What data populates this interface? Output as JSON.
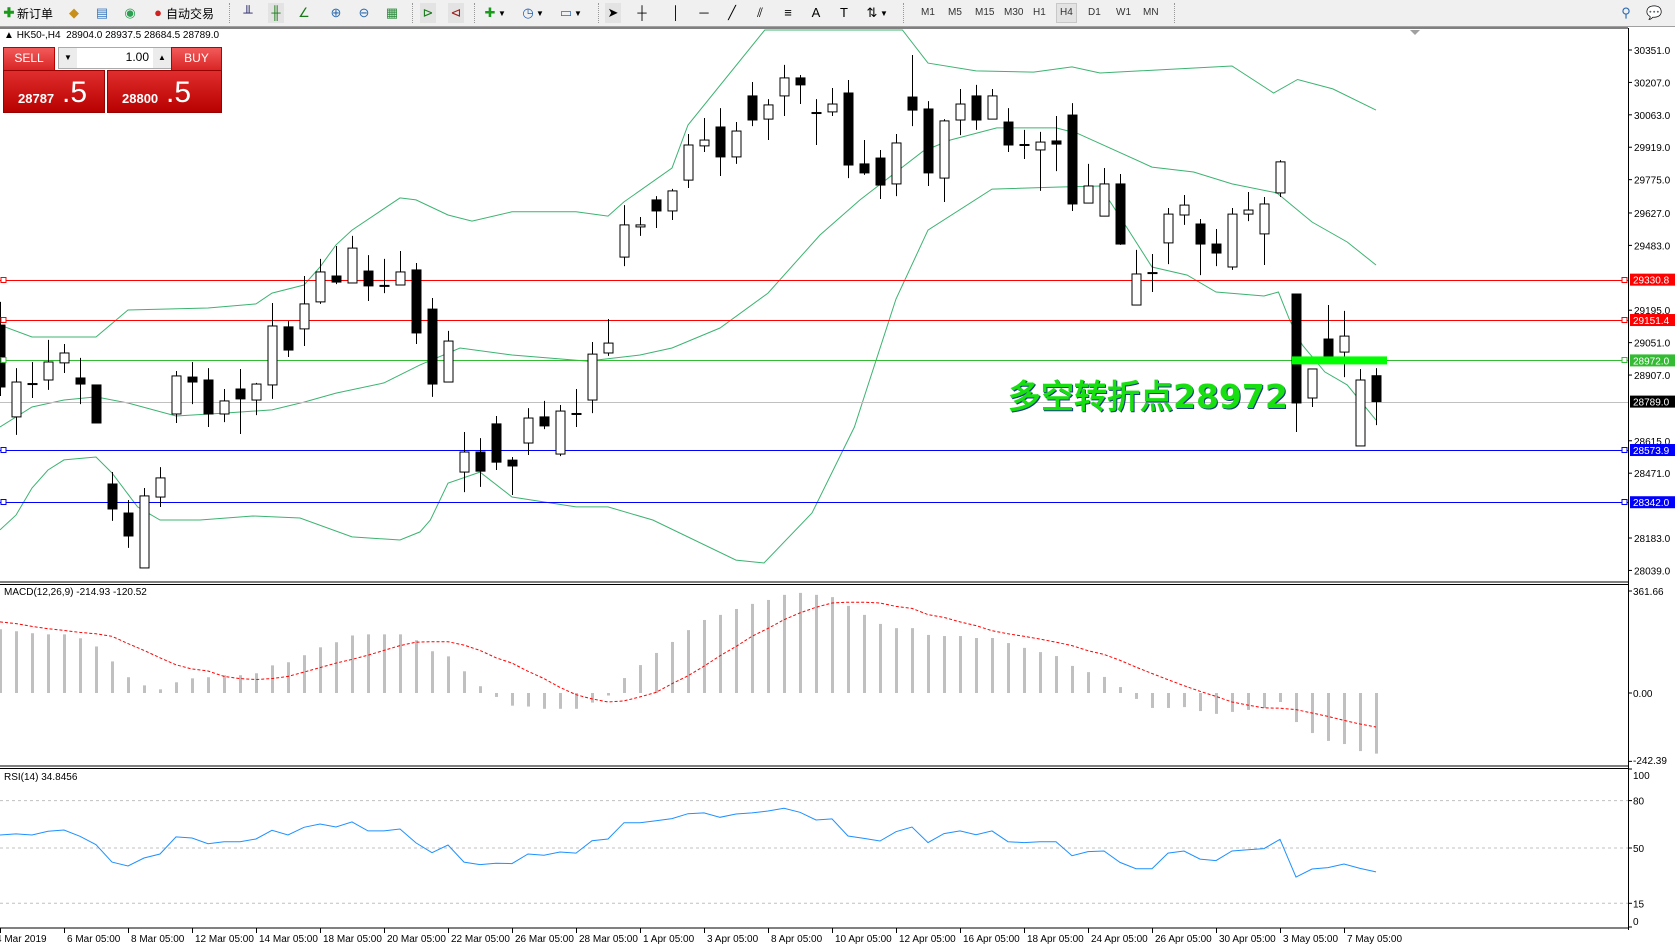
{
  "toolbar": {
    "new_order_label": "新订单",
    "auto_trading_label": "自动交易",
    "icons": [
      "new-order-icon",
      "market-watch-icon",
      "navigator-icon",
      "signals-icon",
      "auto-trading-icon",
      "bar-chart-icon",
      "candlestick-chart-icon",
      "line-chart-icon",
      "zoom-in-icon",
      "zoom-out-icon",
      "tile-windows-icon",
      "chart-shift-icon",
      "autoscroll-icon",
      "indicators-icon",
      "periods-icon",
      "templates-icon",
      "cursor-icon",
      "crosshair-icon",
      "vertical-line-icon",
      "horizontal-line-icon",
      "trendline-icon",
      "equidistant-channel-icon",
      "fibonacci-icon",
      "text-icon",
      "text-label-icon",
      "arrows-icon",
      "search-icon",
      "chat-icon"
    ],
    "timeframes": [
      "M1",
      "M5",
      "M15",
      "M30",
      "H1",
      "H4",
      "D1",
      "W1",
      "MN"
    ],
    "active_timeframe": "H4"
  },
  "header": {
    "symbol": "HK50-,H4",
    "ohlc": "28904.0 28937.5 28684.5 28789.0"
  },
  "trade_panel": {
    "sell_label": "SELL",
    "buy_label": "BUY",
    "lot": "1.00",
    "sell_price_main": "28787",
    "sell_price_frac": ".5",
    "buy_price_main": "28800",
    "buy_price_frac": ".5"
  },
  "annotation": "多空转折点28972",
  "colors": {
    "bands": "#3cb371",
    "macd_hist": "#c0c0c0",
    "macd_signal": "#ff0000",
    "rsi": "#1e90ff",
    "annotation": "#18e010",
    "resistance": "#ff0000",
    "pivot": "#33bb33",
    "support": "#0000ff",
    "bid": "#c0c0c0"
  },
  "price_axis": {
    "ticks": [
      "30351.0",
      "30207.0",
      "30063.0",
      "29919.0",
      "29775.0",
      "29627.0",
      "29483.0",
      "29195.0",
      "29051.0",
      "28907.0",
      "28615.0",
      "28471.0",
      "28183.0",
      "28039.0"
    ]
  },
  "levels": [
    {
      "value": "29330.8",
      "color": "#ff0000",
      "type": "resistance"
    },
    {
      "value": "29151.4",
      "color": "#ff0000",
      "type": "resistance"
    },
    {
      "value": "28972.0",
      "color": "#33bb33",
      "type": "pivot"
    },
    {
      "value": "28789.0",
      "color": "#000000",
      "type": "bid"
    },
    {
      "value": "28573.9",
      "color": "#0000ff",
      "type": "support"
    },
    {
      "value": "28342.0",
      "color": "#0000ff",
      "type": "support"
    }
  ],
  "time_axis": {
    "labels": [
      "4 Mar 2019",
      "6 Mar 05:00",
      "8 Mar 05:00",
      "12 Mar 05:00",
      "14 Mar 05:00",
      "18 Mar 05:00",
      "20 Mar 05:00",
      "22 Mar 05:00",
      "26 Mar 05:00",
      "28 Mar 05:00",
      "1 Apr 05:00",
      "3 Apr 05:00",
      "8 Apr 05:00",
      "10 Apr 05:00",
      "12 Apr 05:00",
      "16 Apr 05:00",
      "18 Apr 05:00",
      "24 Apr 05:00",
      "26 Apr 05:00",
      "30 Apr 05:00",
      "3 May 05:00",
      "7 May 05:00"
    ],
    "label_every_n_bars": 4
  },
  "macd_panel": {
    "label": "MACD(12,26,9) -214.93 -120.52",
    "axis": [
      "361.66",
      "0.00",
      "-242.39"
    ]
  },
  "rsi_panel": {
    "label": "RSI(14) 34.8456",
    "axis": [
      "100",
      "80",
      "50",
      "15",
      "0"
    ],
    "levels": [
      80,
      50,
      15
    ]
  },
  "chart_data": {
    "type": "candlestick",
    "ylim": [
      28000,
      30450
    ],
    "candles_ohlc": [
      [
        29129,
        29232,
        28814,
        28854
      ],
      [
        28721,
        28938,
        28641,
        28876
      ],
      [
        28867,
        28965,
        28805,
        28867
      ],
      [
        28885,
        29063,
        28841,
        28965
      ],
      [
        28961,
        29045,
        28916,
        29005
      ],
      [
        28894,
        28983,
        28778,
        28867
      ],
      [
        28863,
        28863,
        28694,
        28694
      ],
      [
        28423,
        28476,
        28259,
        28312
      ],
      [
        28294,
        28352,
        28139,
        28192
      ],
      [
        28050,
        28405,
        28050,
        28370
      ],
      [
        28365,
        28498,
        28321,
        28450
      ],
      [
        28734,
        28925,
        28694,
        28903
      ],
      [
        28898,
        28965,
        28778,
        28876
      ],
      [
        28885,
        28938,
        28676,
        28734
      ],
      [
        28734,
        28845,
        28698,
        28792
      ],
      [
        28845,
        28934,
        28645,
        28801
      ],
      [
        28796,
        28872,
        28729,
        28867
      ],
      [
        28863,
        29227,
        28801,
        29125
      ],
      [
        29121,
        29147,
        28987,
        29018
      ],
      [
        29112,
        29347,
        29036,
        29223
      ],
      [
        29232,
        29423,
        29223,
        29365
      ],
      [
        29347,
        29480,
        29311,
        29320
      ],
      [
        29316,
        29525,
        29316,
        29471
      ],
      [
        29369,
        29440,
        29236,
        29303
      ],
      [
        29303,
        29423,
        29271,
        29303
      ],
      [
        29307,
        29458,
        29307,
        29365
      ],
      [
        29374,
        29405,
        29045,
        29094
      ],
      [
        29200,
        29249,
        28810,
        28867
      ],
      [
        28876,
        29103,
        28876,
        29058
      ],
      [
        28476,
        28654,
        28387,
        28565
      ],
      [
        28565,
        28627,
        28410,
        28480
      ],
      [
        28690,
        28725,
        28485,
        28520
      ],
      [
        28529,
        28543,
        28374,
        28503
      ],
      [
        28605,
        28760,
        28552,
        28716
      ],
      [
        28721,
        28792,
        28667,
        28681
      ],
      [
        28556,
        28774,
        28547,
        28747
      ],
      [
        28734,
        28845,
        28676,
        28734
      ],
      [
        28796,
        29054,
        28738,
        29000
      ],
      [
        29005,
        29156,
        28992,
        29049
      ],
      [
        29431,
        29662,
        29391,
        29574
      ],
      [
        29565,
        29609,
        29525,
        29574
      ],
      [
        29685,
        29702,
        29560,
        29636
      ],
      [
        29636,
        29734,
        29596,
        29725
      ],
      [
        29773,
        29978,
        29738,
        29929
      ],
      [
        29925,
        30049,
        29898,
        29951
      ],
      [
        30009,
        30093,
        29791,
        29876
      ],
      [
        29876,
        30031,
        29845,
        29991
      ],
      [
        30147,
        30209,
        30013,
        30040
      ],
      [
        30044,
        30133,
        29951,
        30107
      ],
      [
        30147,
        30285,
        30058,
        30227
      ],
      [
        30227,
        30240,
        30111,
        30196
      ],
      [
        30071,
        30133,
        29929,
        30071
      ],
      [
        30076,
        30182,
        30058,
        30111
      ],
      [
        30160,
        30218,
        29782,
        29840
      ],
      [
        29845,
        29951,
        29796,
        29805
      ],
      [
        29871,
        29907,
        29689,
        29751
      ],
      [
        29756,
        29978,
        29702,
        29938
      ],
      [
        30142,
        30329,
        30013,
        30084
      ],
      [
        30089,
        30124,
        29747,
        29805
      ],
      [
        29782,
        30044,
        29676,
        30036
      ],
      [
        30040,
        30178,
        29973,
        30111
      ],
      [
        30147,
        30196,
        29996,
        30040
      ],
      [
        30044,
        30178,
        30044,
        30147
      ],
      [
        30031,
        30093,
        29898,
        29929
      ],
      [
        29929,
        29996,
        29867,
        29929
      ],
      [
        29907,
        29987,
        29725,
        29942
      ],
      [
        29947,
        30058,
        29813,
        29933
      ],
      [
        30062,
        30115,
        29636,
        29667
      ],
      [
        29671,
        29845,
        29671,
        29747
      ],
      [
        29613,
        29827,
        29613,
        29756
      ],
      [
        29756,
        29800,
        29485,
        29489
      ],
      [
        29218,
        29463,
        29218,
        29356
      ],
      [
        29360,
        29445,
        29276,
        29360
      ],
      [
        29494,
        29649,
        29400,
        29622
      ],
      [
        29618,
        29707,
        29574,
        29662
      ],
      [
        29578,
        29600,
        29351,
        29489
      ],
      [
        29489,
        29556,
        29391,
        29449
      ],
      [
        29387,
        29649,
        29374,
        29622
      ],
      [
        29622,
        29720,
        29591,
        29640
      ],
      [
        29534,
        29698,
        29396,
        29667
      ],
      [
        29716,
        29862,
        29698,
        29854
      ],
      [
        29267,
        29267,
        28654,
        28783
      ],
      [
        28805,
        28934,
        28765,
        28934
      ],
      [
        29067,
        29218,
        28987,
        28987
      ],
      [
        29009,
        29192,
        28898,
        29080
      ],
      [
        28592,
        28934,
        28592,
        28885
      ],
      [
        28904,
        28937.5,
        28684.5,
        28789
      ]
    ],
    "bollinger_upper": [
      [
        0,
        29129
      ],
      [
        2,
        29076
      ],
      [
        6,
        29076
      ],
      [
        8,
        29196
      ],
      [
        13,
        29205
      ],
      [
        16,
        29223
      ],
      [
        17,
        29271
      ],
      [
        19,
        29307
      ],
      [
        20,
        29387
      ],
      [
        21,
        29485
      ],
      [
        22,
        29551
      ],
      [
        25,
        29694
      ],
      [
        26,
        29685
      ],
      [
        28,
        29618
      ],
      [
        29.5,
        29591
      ],
      [
        32,
        29632
      ],
      [
        36,
        29632
      ],
      [
        38,
        29613
      ],
      [
        39,
        29676
      ],
      [
        42,
        29827
      ],
      [
        43,
        30018
      ],
      [
        47.8,
        30440
      ],
      [
        56.4,
        30440
      ],
      [
        58,
        30293
      ],
      [
        61,
        30258
      ],
      [
        64.6,
        30253
      ],
      [
        67,
        30276
      ],
      [
        68.75,
        30249
      ],
      [
        77,
        30280
      ],
      [
        79.6,
        30160
      ],
      [
        81.1,
        30220
      ],
      [
        83.3,
        30178
      ],
      [
        86,
        30084
      ]
    ],
    "bollinger_middle": [
      [
        0,
        28676
      ],
      [
        2,
        28765
      ],
      [
        4,
        28796
      ],
      [
        6,
        28810
      ],
      [
        8,
        28783
      ],
      [
        11,
        28725
      ],
      [
        14,
        28738
      ],
      [
        17,
        28752
      ],
      [
        19,
        28787
      ],
      [
        21,
        28827
      ],
      [
        24,
        28872
      ],
      [
        26.25,
        28952
      ],
      [
        28.75,
        29027
      ],
      [
        32,
        28996
      ],
      [
        36.7,
        28969
      ],
      [
        40,
        28996
      ],
      [
        42,
        29027
      ],
      [
        45,
        29116
      ],
      [
        48,
        29271
      ],
      [
        51.25,
        29529
      ],
      [
        53.75,
        29685
      ],
      [
        57.7,
        29902
      ],
      [
        59.4,
        29951
      ],
      [
        62.3,
        30005
      ],
      [
        66,
        30005
      ],
      [
        67.3,
        29982
      ],
      [
        72,
        29831
      ],
      [
        74.6,
        29809
      ],
      [
        77,
        29756
      ],
      [
        79.8,
        29716
      ],
      [
        82,
        29587
      ],
      [
        84.2,
        29498
      ],
      [
        86,
        29396
      ]
    ],
    "bollinger_lower": [
      [
        0,
        28219
      ],
      [
        1,
        28285
      ],
      [
        2,
        28405
      ],
      [
        3,
        28485
      ],
      [
        4,
        28530
      ],
      [
        6,
        28543
      ],
      [
        7,
        28472
      ],
      [
        8.6,
        28321
      ],
      [
        10,
        28263
      ],
      [
        12.5,
        28263
      ],
      [
        15.8,
        28281
      ],
      [
        18.75,
        28272
      ],
      [
        22,
        28188
      ],
      [
        25,
        28174
      ],
      [
        26.25,
        28210
      ],
      [
        26.9,
        28263
      ],
      [
        28,
        28427
      ],
      [
        30,
        28476
      ],
      [
        32,
        28365
      ],
      [
        36,
        28321
      ],
      [
        38,
        28321
      ],
      [
        40.8,
        28263
      ],
      [
        46,
        28085
      ],
      [
        47.75,
        28072
      ],
      [
        50.75,
        28294
      ],
      [
        53.4,
        28676
      ],
      [
        56,
        29245
      ],
      [
        58,
        29551
      ],
      [
        62,
        29733
      ],
      [
        66,
        29742
      ],
      [
        68.75,
        29747
      ],
      [
        70.4,
        29565
      ],
      [
        72,
        29387
      ],
      [
        74.2,
        29351
      ],
      [
        76,
        29276
      ],
      [
        79,
        29258
      ],
      [
        79.9,
        29276
      ],
      [
        80.6,
        29152
      ],
      [
        81.4,
        29040
      ],
      [
        82.8,
        28921
      ],
      [
        84.2,
        28863
      ],
      [
        86,
        28707
      ]
    ],
    "macd_hist": [
      226,
      219,
      212,
      208,
      208,
      194,
      165,
      112,
      56,
      27,
      13,
      38,
      52,
      56,
      63,
      63,
      70,
      98,
      109,
      134,
      162,
      180,
      204,
      208,
      208,
      208,
      187,
      148,
      130,
      77,
      24,
      -14,
      -45,
      -48,
      -56,
      -56,
      -56,
      -34,
      -9,
      53,
      99,
      142,
      181,
      223,
      259,
      277,
      298,
      316,
      330,
      348,
      355,
      348,
      340,
      309,
      277,
      245,
      230,
      230,
      206,
      202,
      202,
      195,
      195,
      177,
      160,
      145,
      131,
      96,
      74,
      57,
      21,
      -21,
      -53,
      -53,
      -50,
      -64,
      -74,
      -67,
      -60,
      -53,
      -32,
      -103,
      -142,
      -170,
      -181,
      -206,
      -214.93
    ],
    "macd_signal": [
      252,
      246,
      236,
      228,
      222,
      215,
      210,
      201,
      175,
      151,
      125,
      100,
      85,
      78,
      59,
      51,
      48,
      51,
      59,
      74,
      90,
      106,
      119,
      134,
      151,
      168,
      180,
      182,
      182,
      170,
      151,
      125,
      106,
      77,
      51,
      20,
      -6,
      -21,
      -32,
      -28,
      -14,
      2,
      33,
      61,
      95,
      132,
      165,
      201,
      229,
      260,
      284,
      304,
      319,
      322,
      322,
      319,
      307,
      300,
      278,
      268,
      252,
      239,
      221,
      210,
      201,
      191,
      180,
      168,
      150,
      137,
      116,
      92,
      69,
      47,
      26,
      6,
      -12,
      -32,
      -43,
      -53,
      -54,
      -59,
      -71,
      -83,
      -97,
      -110,
      -120.52
    ],
    "macd_ylim": [
      -242.39,
      361.66
    ],
    "rsi": [
      58.2,
      58.9,
      58.2,
      60.6,
      61.4,
      57.4,
      52.1,
      41.1,
      38.6,
      43.7,
      46.2,
      57,
      56.3,
      52.7,
      54,
      54,
      55.7,
      61.2,
      58.2,
      63.1,
      65.2,
      63.3,
      66.5,
      60.8,
      60.8,
      62,
      53.2,
      47,
      51.9,
      41.1,
      39.5,
      40.3,
      40.1,
      46.2,
      45.4,
      47.5,
      46.8,
      54.6,
      55.7,
      66,
      66,
      67.3,
      68.6,
      71.7,
      72.2,
      69.4,
      71.5,
      72.2,
      73.4,
      75.1,
      72.6,
      67.7,
      68.4,
      57.6,
      56.1,
      54.4,
      60.3,
      63.3,
      53.4,
      59.1,
      60.8,
      58.4,
      60.8,
      54,
      53.4,
      54,
      54,
      45.1,
      47.7,
      48.1,
      40.9,
      36.9,
      36.9,
      46.8,
      48.1,
      43,
      42,
      48.1,
      48.9,
      49.6,
      55.5,
      31.6,
      36.7,
      37.6,
      39.9,
      37.1,
      34.8456
    ],
    "rsi_ylim": [
      0,
      100
    ],
    "pivot_marker": {
      "value": 28972,
      "from_bar": 80.75,
      "to_bar": 87
    }
  }
}
